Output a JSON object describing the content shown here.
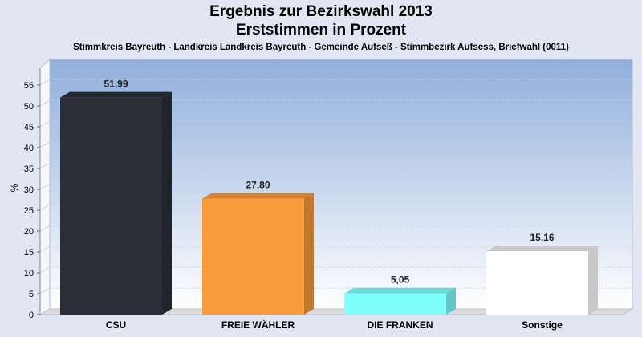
{
  "title_line1": "Ergebnis zur Bezirkswahl 2013",
  "title_line2": "Erststimmen in Prozent",
  "subtitle": "Stimmkreis Bayreuth - Landkreis Landkreis Bayreuth - Gemeinde Aufseß - Stimmbezirk Aufsess, Briefwahl (0011)",
  "chart_data": {
    "type": "bar",
    "title": "Ergebnis zur Bezirkswahl 2013 Erststimmen in Prozent",
    "ylabel": "%",
    "xlabel": "",
    "ylim": [
      0,
      60
    ],
    "yticks": [
      0,
      5,
      10,
      15,
      20,
      25,
      30,
      35,
      40,
      45,
      50,
      55
    ],
    "categories": [
      "CSU",
      "FREIE WÄHLER",
      "DIE FRANKEN",
      "Sonstige"
    ],
    "values": [
      51.99,
      27.8,
      5.05,
      15.16
    ],
    "value_labels": [
      "51,99",
      "27,80",
      "5,05",
      "15,16"
    ],
    "colors": [
      "#2b2e38",
      "#f79b3c",
      "#80ffff",
      "#ffffff"
    ],
    "grid": true,
    "legend": "none"
  }
}
